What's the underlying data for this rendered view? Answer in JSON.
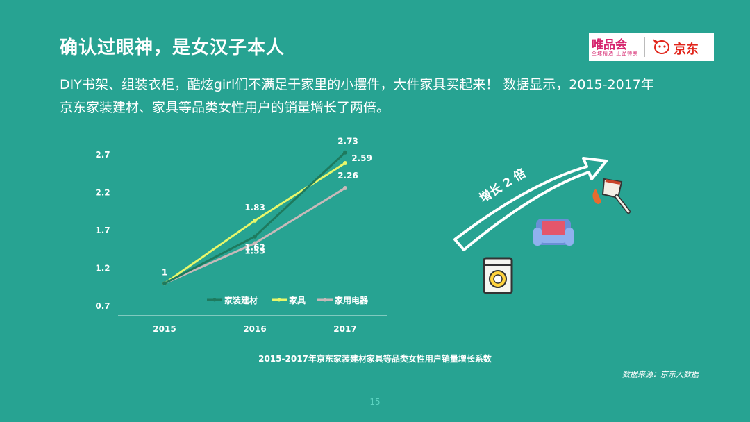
{
  "slide": {
    "title": "确认过眼神，是女汉子本人",
    "description_line1": "DIY书架、组装衣柜，酷炫girl们不满足于家里的小摆件，大件家具买起来！ 数据显示，2015-2017年",
    "description_line2": "京东家装建材、家具等品类女性用户的销量增长了两倍。",
    "caption": "2015-2017年京东家装建材家具等品类女性用户销量增长系数",
    "source": "数据来源：京东大数据",
    "page_number": "15",
    "arrow_label": "增长 2 倍"
  },
  "logos": {
    "vip_name": "唯品会",
    "vip_slogan": "全球精选 正品特卖",
    "jd_name": "京东"
  },
  "colors": {
    "background": "#27a392",
    "series_building": "#1e7a5e",
    "series_furniture": "#e8f76a",
    "series_appliance": "#c8b9b9"
  },
  "icons": [
    "arrow-icon",
    "paint-brush-icon",
    "armchair-icon",
    "washing-machine-icon",
    "jd-dog-icon"
  ],
  "chart_data": {
    "type": "line",
    "categories": [
      "2015",
      "2016",
      "2017"
    ],
    "ylim": [
      0.7,
      2.7
    ],
    "yticks": [
      "0.7",
      "1.2",
      "1.7",
      "2.2",
      "2.7"
    ],
    "legend_position": "bottom-right",
    "grid": false,
    "series": [
      {
        "name": "家装建材",
        "values": [
          1,
          1.62,
          2.73
        ],
        "labels": [
          "",
          "1.62",
          "2.73"
        ],
        "color": "#1e7a5e"
      },
      {
        "name": "家具",
        "values": [
          1,
          1.83,
          2.59
        ],
        "labels": [
          "1",
          "1.83",
          "2.59"
        ],
        "color": "#e8f76a"
      },
      {
        "name": "家用电器",
        "values": [
          1,
          1.53,
          2.26
        ],
        "labels": [
          "",
          "1.53",
          "2.26"
        ],
        "color": "#c8b9b9"
      }
    ]
  }
}
